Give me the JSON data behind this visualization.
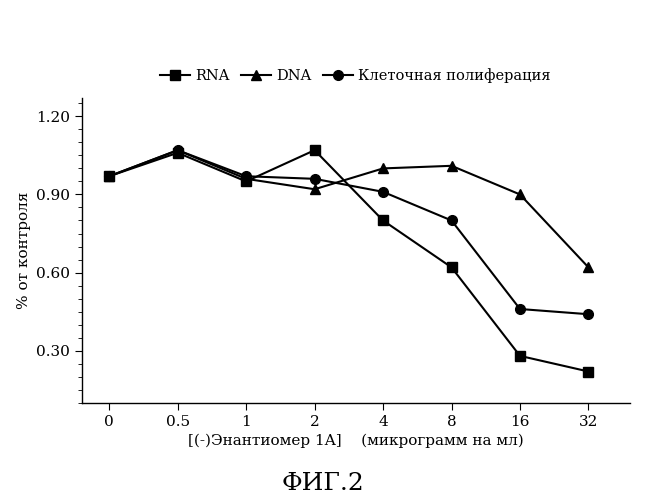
{
  "x_positions": [
    0,
    1,
    2,
    3,
    4,
    5,
    6,
    7
  ],
  "x_labels": [
    "0",
    "0.5",
    "1",
    "2",
    "4",
    "8",
    "16",
    "32"
  ],
  "RNA": [
    0.97,
    1.06,
    0.95,
    1.07,
    0.8,
    0.62,
    0.28,
    0.22
  ],
  "DNA": [
    0.97,
    1.07,
    0.96,
    0.92,
    1.0,
    1.01,
    0.9,
    0.62
  ],
  "Cell": [
    0.97,
    1.07,
    0.97,
    0.96,
    0.91,
    0.8,
    0.46,
    0.44
  ],
  "legend_labels": [
    "RNA",
    "DNA",
    "Клеточная полиферация"
  ],
  "markers": [
    "s",
    "^",
    "o"
  ],
  "xlabel_left": "[(-)Энантиомер 1A]",
  "xlabel_right": "(микрограмм на мл)",
  "ylabel": "% от контроля",
  "title": "ФИГ.2",
  "ytick_vals": [
    0.3,
    0.6,
    0.9,
    1.2
  ],
  "ytick_labels": [
    "0.30",
    "0.60",
    "0.90",
    "1.20"
  ],
  "ylim": [
    0.1,
    1.27
  ],
  "xlim": [
    -0.4,
    7.6
  ],
  "linewidth": 1.5,
  "markersize": 7,
  "background_color": "#ffffff"
}
